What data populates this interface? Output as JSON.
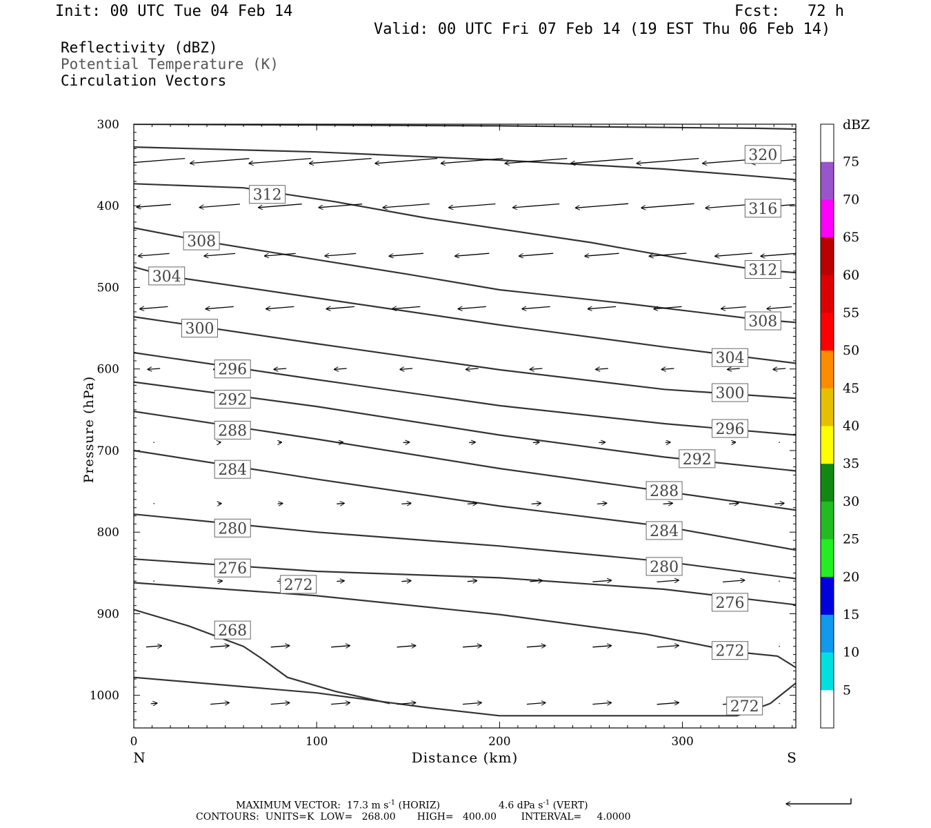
{
  "header": {
    "init": "Init: 00 UTC Tue 04 Feb 14",
    "fcst": "Fcst:   72 h",
    "valid": "Valid: 00 UTC Fri 07 Feb 14 (19 EST Thu 06 Feb 14)"
  },
  "legend": {
    "reflectivity": "Reflectivity (dBZ)",
    "potential_temperature": "Potential Temperature (K)",
    "circulation": "Circulation Vectors"
  },
  "footer": {
    "max_vector_prefix": "MAXIMUM VECTOR:  17.3 m s",
    "max_vector_exp": "-1",
    "max_vector_horiz": " (HORIZ)",
    "max_vector_vert_prefix": "4.6 dPa s",
    "max_vector_vert_exp": "-1",
    "max_vector_vert": " (VERT)",
    "contours": "CONTOURS:  UNITS=K  LOW=   268.00       HIGH=   400.00        INTERVAL=     4.0000"
  },
  "colorbar": {
    "unit": "dBZ",
    "bins": [
      {
        "label": "75",
        "color": "#ffffff"
      },
      {
        "label": "70",
        "color": "#9955cc"
      },
      {
        "label": "65",
        "color": "#ff00ff"
      },
      {
        "label": "60",
        "color": "#bb0000"
      },
      {
        "label": "55",
        "color": "#dd0000"
      },
      {
        "label": "50",
        "color": "#ff0000"
      },
      {
        "label": "45",
        "color": "#ff8c00"
      },
      {
        "label": "40",
        "color": "#e6c000"
      },
      {
        "label": "35",
        "color": "#ffff00"
      },
      {
        "label": "30",
        "color": "#118811"
      },
      {
        "label": "25",
        "color": "#22bb22"
      },
      {
        "label": "20",
        "color": "#22ee22"
      },
      {
        "label": "15",
        "color": "#0000dd"
      },
      {
        "label": "10",
        "color": "#1199ee"
      },
      {
        "label": "5",
        "color": "#00e0e0"
      },
      {
        "label": "",
        "color": "#ffffff"
      }
    ]
  },
  "chart_data": {
    "type": "line",
    "title": "",
    "xlabel": "Distance (km)",
    "ylabel": "Pressure (hPa)",
    "xlim": [
      0,
      362
    ],
    "ylim": [
      1040,
      300
    ],
    "x_ticks": [
      0,
      100,
      200,
      300
    ],
    "y_ticks": [
      300,
      400,
      500,
      600,
      700,
      800,
      900,
      1000
    ],
    "x_end_labels": {
      "left": "N",
      "right": "S"
    },
    "series": [
      {
        "name": "320",
        "label_at": [
          [
            344,
            337
          ]
        ],
        "points": [
          [
            0,
            300
          ],
          [
            100,
            301
          ],
          [
            200,
            302
          ],
          [
            290,
            304
          ],
          [
            340,
            305
          ],
          [
            362,
            306
          ]
        ]
      },
      {
        "name": "316",
        "label_at": [
          [
            344,
            403
          ]
        ],
        "points": [
          [
            0,
            328
          ],
          [
            100,
            334
          ],
          [
            200,
            344
          ],
          [
            290,
            355
          ],
          [
            330,
            362
          ],
          [
            362,
            368
          ]
        ]
      },
      {
        "name": "312",
        "label_at": [
          [
            73,
            386
          ],
          [
            344,
            478
          ]
        ],
        "points": [
          [
            0,
            373
          ],
          [
            60,
            378
          ],
          [
            110,
            395
          ],
          [
            160,
            415
          ],
          [
            250,
            445
          ],
          [
            300,
            465
          ],
          [
            340,
            478
          ],
          [
            362,
            482
          ]
        ]
      },
      {
        "name": "308",
        "label_at": [
          [
            37,
            443
          ],
          [
            344,
            541
          ]
        ],
        "points": [
          [
            0,
            427
          ],
          [
            37,
            443
          ],
          [
            100,
            466
          ],
          [
            150,
            484
          ],
          [
            200,
            503
          ],
          [
            270,
            520
          ],
          [
            340,
            539
          ],
          [
            362,
            543
          ]
        ]
      },
      {
        "name": "304",
        "label_at": [
          [
            18,
            486
          ],
          [
            326,
            586
          ]
        ],
        "points": [
          [
            0,
            475
          ],
          [
            18,
            486
          ],
          [
            100,
            513
          ],
          [
            200,
            546
          ],
          [
            290,
            573
          ],
          [
            362,
            593
          ]
        ]
      },
      {
        "name": "300",
        "label_at": [
          [
            36,
            550
          ],
          [
            326,
            629
          ]
        ],
        "points": [
          [
            0,
            536
          ],
          [
            100,
            569
          ],
          [
            200,
            601
          ],
          [
            290,
            625
          ],
          [
            362,
            636
          ]
        ]
      },
      {
        "name": "296",
        "label_at": [
          [
            54,
            600
          ],
          [
            326,
            673
          ]
        ],
        "points": [
          [
            0,
            580
          ],
          [
            100,
            613
          ],
          [
            200,
            645
          ],
          [
            290,
            667
          ],
          [
            362,
            681
          ]
        ]
      },
      {
        "name": "292",
        "label_at": [
          [
            54,
            637
          ],
          [
            308,
            710
          ]
        ],
        "points": [
          [
            0,
            616
          ],
          [
            100,
            646
          ],
          [
            200,
            681
          ],
          [
            290,
            708
          ],
          [
            362,
            725
          ]
        ]
      },
      {
        "name": "288",
        "label_at": [
          [
            54,
            675
          ],
          [
            290,
            749
          ]
        ],
        "points": [
          [
            0,
            652
          ],
          [
            100,
            686
          ],
          [
            200,
            722
          ],
          [
            290,
            750
          ],
          [
            362,
            773
          ]
        ]
      },
      {
        "name": "284",
        "label_at": [
          [
            54,
            723
          ],
          [
            290,
            798
          ]
        ],
        "points": [
          [
            0,
            700
          ],
          [
            100,
            735
          ],
          [
            200,
            768
          ],
          [
            290,
            793
          ],
          [
            362,
            822
          ]
        ]
      },
      {
        "name": "280",
        "label_at": [
          [
            54,
            795
          ],
          [
            290,
            842
          ]
        ],
        "points": [
          [
            0,
            778
          ],
          [
            100,
            800
          ],
          [
            200,
            817
          ],
          [
            290,
            836
          ],
          [
            362,
            857
          ]
        ]
      },
      {
        "name": "276",
        "label_at": [
          [
            54,
            844
          ],
          [
            326,
            886
          ]
        ],
        "points": [
          [
            0,
            833
          ],
          [
            100,
            848
          ],
          [
            200,
            856
          ],
          [
            290,
            870
          ],
          [
            362,
            889
          ]
        ]
      },
      {
        "name": "272",
        "label_at": [
          [
            90,
            864
          ],
          [
            326,
            945
          ]
        ],
        "points": [
          [
            0,
            862
          ],
          [
            100,
            878
          ],
          [
            200,
            901
          ],
          [
            280,
            925
          ],
          [
            330,
            947
          ],
          [
            352,
            952
          ],
          [
            362,
            966
          ]
        ]
      },
      {
        "name": "268",
        "label_at": [
          [
            54,
            920
          ]
        ],
        "points": [
          [
            0,
            895
          ],
          [
            30,
            915
          ],
          [
            60,
            940
          ],
          [
            70,
            955
          ],
          [
            84,
            978
          ],
          [
            110,
            995
          ],
          [
            140,
            1010
          ]
        ]
      },
      {
        "name": "272",
        "label_at": [
          [
            334,
            1013
          ]
        ],
        "points": [
          [
            0,
            978
          ],
          [
            100,
            997
          ],
          [
            160,
            1015
          ],
          [
            200,
            1025
          ],
          [
            330,
            1025
          ],
          [
            348,
            1010
          ],
          [
            362,
            985
          ]
        ]
      }
    ],
    "vectors": {
      "x": [
        11,
        47,
        80,
        113,
        149,
        185,
        220,
        256,
        292,
        328,
        353
      ],
      "rows": [
        {
          "p": 345,
          "u": [
            -1.0,
            -0.95,
            -1.0,
            -1.0,
            -1.0,
            -1.0,
            -1.0,
            -1.0,
            -1.0,
            -1.0,
            -0.9
          ]
        },
        {
          "p": 400,
          "u": [
            -0.55,
            -0.65,
            -0.7,
            -0.7,
            -0.75,
            -0.75,
            -0.75,
            -0.85,
            -0.85,
            -0.9,
            -0.5
          ]
        },
        {
          "p": 460,
          "u": [
            -0.5,
            -0.5,
            -0.5,
            -0.5,
            -0.55,
            -0.55,
            -0.55,
            -0.55,
            -0.6,
            -0.6,
            -0.6
          ]
        },
        {
          "p": 525,
          "u": [
            -0.45,
            -0.45,
            -0.45,
            -0.45,
            -0.45,
            -0.45,
            -0.45,
            -0.45,
            -0.45,
            -0.4,
            -0.4
          ]
        },
        {
          "p": 600,
          "u": [
            -0.2,
            -0.2,
            -0.2,
            -0.2,
            -0.2,
            -0.2,
            -0.2,
            -0.2,
            -0.2,
            -0.2,
            -0.2
          ]
        },
        {
          "p": 690,
          "u": [
            0.0,
            0.03,
            0.05,
            0.08,
            0.1,
            0.1,
            0.1,
            0.1,
            0.08,
            0.06,
            0.0
          ]
        },
        {
          "p": 765,
          "u": [
            0.0,
            0.05,
            0.08,
            0.12,
            0.15,
            0.15,
            0.15,
            0.15,
            0.15,
            0.15,
            0.15
          ]
        },
        {
          "p": 860,
          "u": [
            0.0,
            0.08,
            0.1,
            0.12,
            0.15,
            0.15,
            0.2,
            0.3,
            0.35,
            0.35,
            0.0
          ]
        },
        {
          "p": 940,
          "u": [
            0.25,
            0.3,
            0.3,
            0.3,
            0.3,
            0.3,
            0.3,
            0.3,
            0.35,
            0.35,
            0.0
          ]
        },
        {
          "p": 1010,
          "u": [
            0.1,
            0.3,
            0.3,
            0.3,
            0.3,
            0.3,
            0.3,
            0.3,
            0.35,
            0.35,
            0.0
          ]
        }
      ]
    }
  }
}
